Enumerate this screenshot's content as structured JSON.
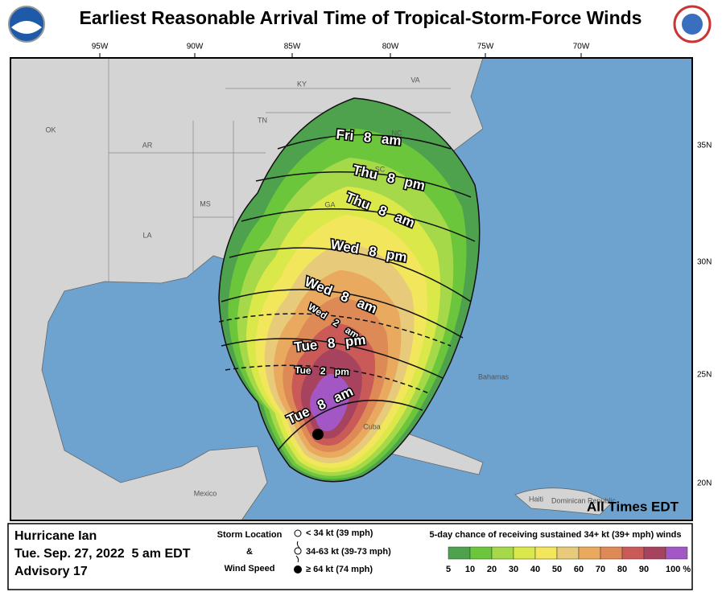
{
  "header": {
    "title": "Earliest Reasonable Arrival Time of Tropical-Storm-Force Winds"
  },
  "map": {
    "longitude_labels": [
      "95W",
      "90W",
      "85W",
      "80W",
      "75W",
      "70W"
    ],
    "latitude_labels": [
      "35N",
      "30N",
      "25N",
      "20N"
    ],
    "state_labels": [
      "KY",
      "VA",
      "OK",
      "TN",
      "NC",
      "AR",
      "SC",
      "MS",
      "GA",
      "LA"
    ],
    "place_labels": [
      "Bahamas",
      "Cuba",
      "Mexico",
      "Haiti",
      "Dominican Republic"
    ],
    "arrival_labels": [
      "Fri 8 am",
      "Thu 8 pm",
      "Thu 8 am",
      "Wed 8 pm",
      "Wed 8 am",
      "Wed 2 am",
      "Tue 8 pm",
      "Tue 2 pm",
      "Tue 8 am"
    ],
    "note": "All Times EDT"
  },
  "legend": {
    "storm_name": "Hurricane Ian",
    "date": "Tue. Sep. 27, 2022  5 am EDT",
    "advisory": "Advisory 17",
    "storm_location": "Storm Location",
    "ampersand": "&",
    "wind_speed": "Wind Speed",
    "wind_classes": [
      "< 34 kt (39 mph)",
      "34-63 kt (39-73 mph)",
      "≥ 64 kt (74 mph)"
    ],
    "probability_title": "5-day chance of receiving sustained 34+ kt (39+ mph) winds",
    "probability_labels": [
      "5",
      "10",
      "20",
      "30",
      "40",
      "50",
      "60",
      "70",
      "80",
      "90",
      "100 %"
    ],
    "probability_colors": [
      "#4ea24e",
      "#6cc63c",
      "#a6d94a",
      "#dbe84a",
      "#f2e65c",
      "#e7cb7a",
      "#e9aa60",
      "#de8a56",
      "#c95a58",
      "#a8435f",
      "#a257c4"
    ]
  }
}
